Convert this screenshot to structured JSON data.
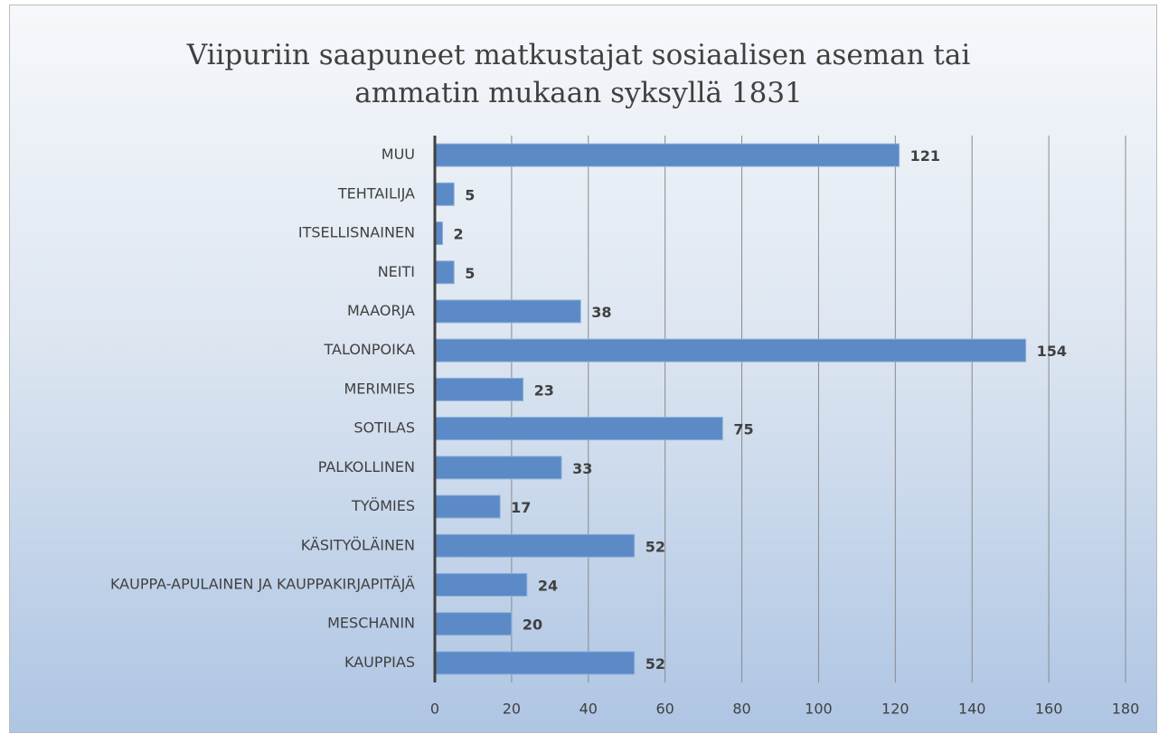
{
  "chart_data": {
    "type": "bar",
    "orientation": "horizontal",
    "title": "Viipuriin saapuneet matkustajat sosiaalisen aseman tai ammatin mukaan syksyllä 1831",
    "categories": [
      "MUU",
      "TEHTAILIJA",
      "ITSELLISNAINEN",
      "NEITI",
      "MAAORJA",
      "TALONPOIKA",
      "MERIMIES",
      "SOTILAS",
      "PALKOLLINEN",
      "TYÖMIES",
      "KÄSITYÖLÄINEN",
      "KAUPPA-APULAINEN JA KAUPPAKIRJAPITÄJÄ",
      "MESCHANIN",
      "KAUPPIAS"
    ],
    "values": [
      121,
      5,
      2,
      5,
      38,
      154,
      23,
      75,
      33,
      17,
      52,
      24,
      20,
      52
    ],
    "color": "#5b8ac6",
    "xlim": [
      0,
      180
    ],
    "xticks": [
      0,
      20,
      40,
      60,
      80,
      100,
      120,
      140,
      160,
      180
    ],
    "grid": true
  }
}
